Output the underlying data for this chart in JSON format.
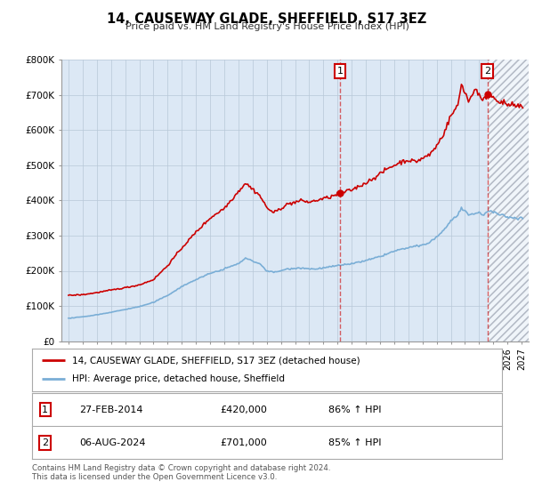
{
  "title": "14, CAUSEWAY GLADE, SHEFFIELD, S17 3EZ",
  "subtitle": "Price paid vs. HM Land Registry's House Price Index (HPI)",
  "red_label": "14, CAUSEWAY GLADE, SHEFFIELD, S17 3EZ (detached house)",
  "blue_label": "HPI: Average price, detached house, Sheffield",
  "annotation1_date": "27-FEB-2014",
  "annotation1_price": "£420,000",
  "annotation1_hpi": "86% ↑ HPI",
  "annotation2_date": "06-AUG-2024",
  "annotation2_price": "£701,000",
  "annotation2_hpi": "85% ↑ HPI",
  "footer": "Contains HM Land Registry data © Crown copyright and database right 2024.\nThis data is licensed under the Open Government Licence v3.0.",
  "sale1_x": 2014.17,
  "sale1_y": 420000,
  "sale2_x": 2024.58,
  "sale2_y": 701000,
  "future_start": 2024.58,
  "xmin": 1994.5,
  "xmax": 2027.5,
  "ylim": [
    0,
    800000
  ],
  "ytick_interval": 100000,
  "bg_color": "#dce8f5",
  "hatch_bg": "#e8eef8",
  "grid_color": "#b8c8d8",
  "red_color": "#cc0000",
  "blue_color": "#7aaed6",
  "red_dot_color": "#cc0000",
  "box_edge_color": "#cc0000"
}
